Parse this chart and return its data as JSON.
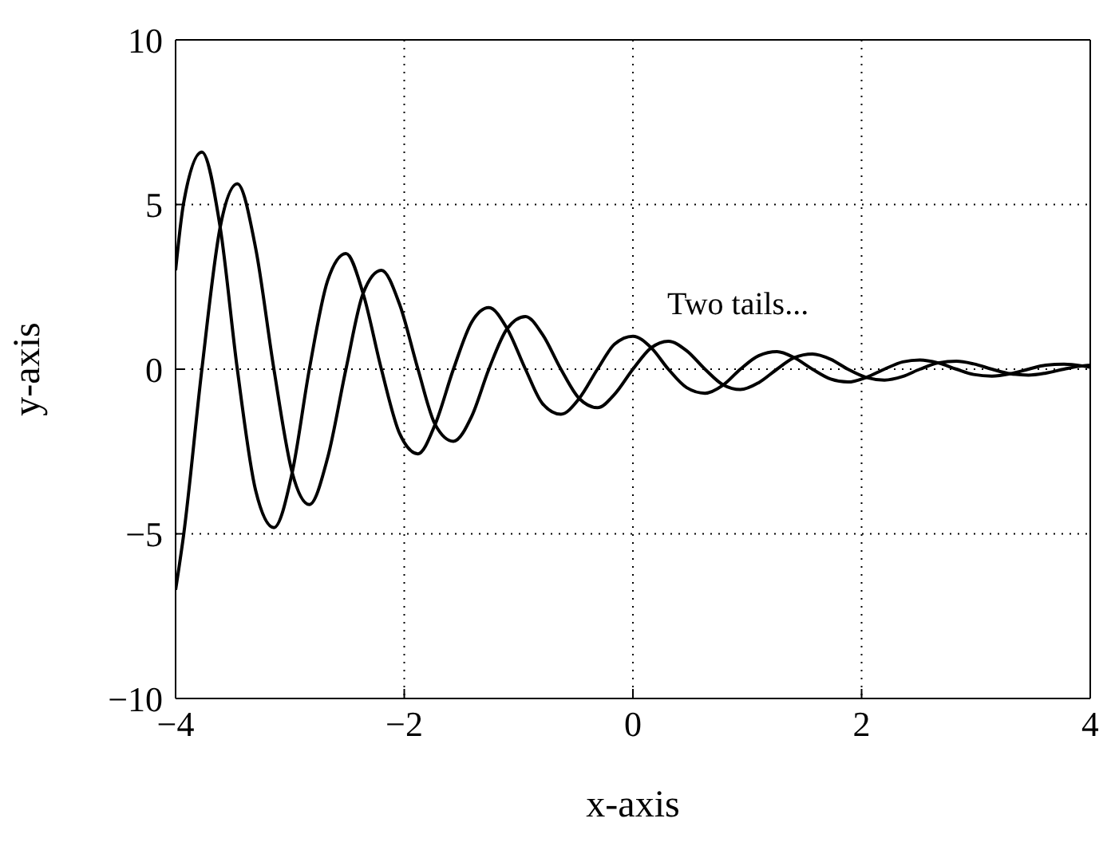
{
  "chart_data": {
    "type": "line",
    "xlabel": "x-axis",
    "ylabel": "y-axis",
    "x": [
      -4,
      -3.93,
      -3.77,
      -3.61,
      -3.46,
      -3.3,
      -3.14,
      -2.98,
      -2.83,
      -2.67,
      -2.51,
      -2.36,
      -2.2,
      -2.04,
      -1.88,
      -1.73,
      -1.57,
      -1.41,
      -1.26,
      -1.1,
      -0.94,
      -0.79,
      -0.63,
      -0.47,
      -0.31,
      -0.16,
      0,
      0.16,
      0.31,
      0.47,
      0.63,
      0.79,
      0.94,
      1.1,
      1.26,
      1.41,
      1.57,
      1.73,
      1.88,
      2.04,
      2.2,
      2.36,
      2.51,
      2.67,
      2.83,
      2.98,
      3.14,
      3.3,
      3.46,
      3.61,
      3.77,
      3.93,
      4
    ],
    "series": [
      {
        "color": "#000000",
        "values": [
          -6.7,
          -5.04,
          0,
          4.31,
          5.63,
          3.68,
          0,
          -3.14,
          -4.11,
          -2.69,
          0,
          2.3,
          3,
          1.96,
          0,
          -1.68,
          -2.19,
          -1.43,
          0,
          1.23,
          1.6,
          1.05,
          0,
          -0.89,
          -1.17,
          -0.76,
          0,
          0.65,
          0.85,
          0.56,
          0,
          -0.48,
          -0.62,
          -0.41,
          0,
          0.35,
          0.46,
          0.3,
          0,
          -0.25,
          -0.33,
          -0.22,
          0,
          0.19,
          0.24,
          0.16,
          0,
          -0.14,
          -0.18,
          -0.12,
          0,
          0.1,
          0.12
        ]
      },
      {
        "color": "#000000",
        "values": [
          3,
          5.04,
          6.59,
          4.31,
          0,
          -3.68,
          -4.81,
          -3.14,
          0,
          2.69,
          3.51,
          2.3,
          0,
          -1.96,
          -2.57,
          -1.68,
          0,
          1.43,
          1.87,
          1.23,
          0,
          -1.05,
          -1.37,
          -0.89,
          0,
          0.76,
          1,
          0.65,
          0,
          -0.56,
          -0.73,
          -0.48,
          0,
          0.41,
          0.53,
          0.35,
          0,
          -0.3,
          -0.39,
          -0.25,
          0,
          0.22,
          0.28,
          0.19,
          0,
          -0.16,
          -0.21,
          -0.14,
          0,
          0.12,
          0.15,
          0.1,
          0.06
        ]
      }
    ],
    "xlim": [
      -4,
      4
    ],
    "ylim": [
      -10,
      10
    ],
    "xticks": [
      {
        "value": -4,
        "label": "−4"
      },
      {
        "value": -2,
        "label": "−2"
      },
      0,
      2,
      4
    ],
    "yticks": [
      {
        "value": -10,
        "label": "−10"
      },
      {
        "value": -5,
        "label": "−5"
      },
      0,
      5,
      10
    ],
    "grid": true,
    "annotations": [
      "Two tails..."
    ]
  }
}
